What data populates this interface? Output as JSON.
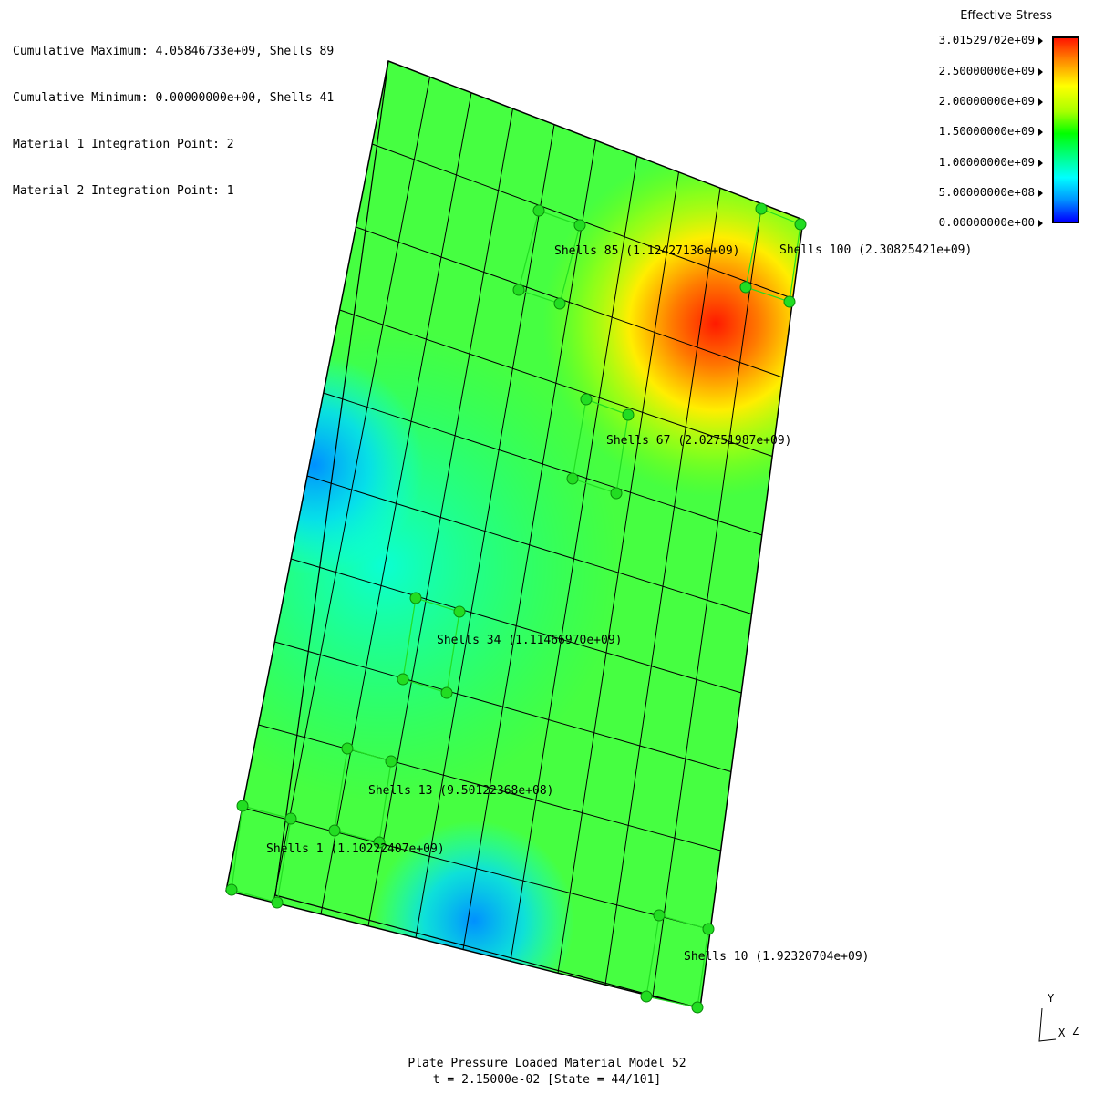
{
  "info": {
    "cumulative_max": "Cumulative Maximum: 4.05846733e+09, Shells 89",
    "cumulative_min": "Cumulative Minimum: 0.00000000e+00, Shells 41",
    "material1": "Material 1 Integration Point: 2",
    "material2": "Material 2 Integration Point: 1"
  },
  "legend": {
    "title": "Effective Stress",
    "ticks": [
      "3.01529702e+09",
      "2.50000000e+09",
      "2.00000000e+09",
      "1.50000000e+09",
      "1.00000000e+09",
      "5.00000000e+08",
      "0.00000000e+00"
    ]
  },
  "shells": [
    {
      "label": "Shells 85 (1.12427136e+09)"
    },
    {
      "label": "Shells 100 (2.30825421e+09)"
    },
    {
      "label": "Shells 67 (2.02751987e+09)"
    },
    {
      "label": "Shells 34 (1.11466970e+09)"
    },
    {
      "label": "Shells 13 (9.50122368e+08)"
    },
    {
      "label": "Shells 1 (1.10222407e+09)"
    },
    {
      "label": "Shells 10 (1.92320704e+09)"
    }
  ],
  "caption": {
    "line1": "Plate Pressure Loaded  Material Model 52",
    "line2": "t = 2.15000e-02 [State = 44/101]"
  },
  "axes": {
    "y": "Y",
    "x": "X",
    "z": "Z"
  },
  "colors": {
    "max": "#ff1500",
    "min": "#0000ff",
    "node": "#22dd22"
  }
}
